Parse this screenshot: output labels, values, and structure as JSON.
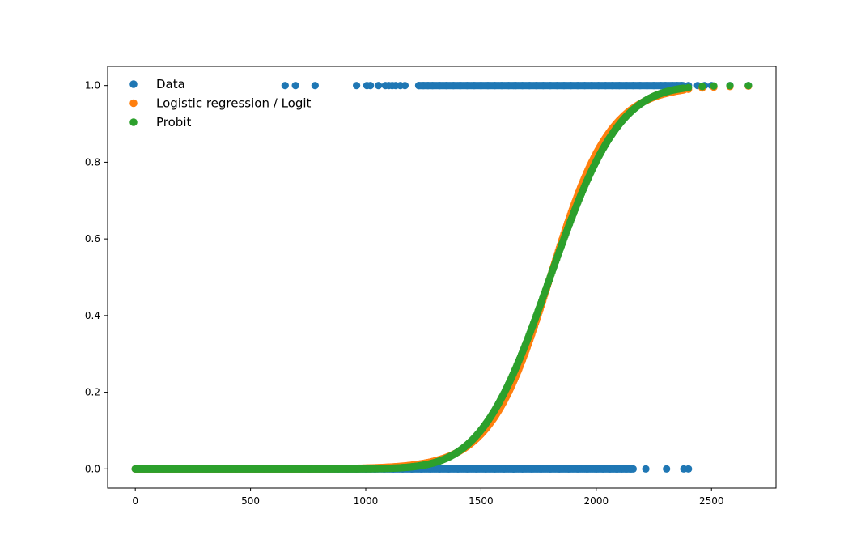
{
  "chart_data": {
    "type": "scatter",
    "title": "",
    "xlabel": "",
    "ylabel": "",
    "xlim": [
      -120,
      2780
    ],
    "ylim": [
      -0.05,
      1.05
    ],
    "x_ticks": [
      0,
      500,
      1000,
      1500,
      2000,
      2500
    ],
    "y_ticks": [
      0.0,
      0.2,
      0.4,
      0.6,
      0.8,
      1.0
    ],
    "x_tick_labels": [
      "0",
      "500",
      "1000",
      "1500",
      "2000",
      "2500"
    ],
    "y_tick_labels": [
      "0.0",
      "0.2",
      "0.4",
      "0.6",
      "0.8",
      "1.0"
    ],
    "grid": false,
    "legend_position": "upper-left",
    "series": [
      {
        "name": "Data",
        "color": "#1f77b4",
        "points_y1": [
          650,
          695,
          780,
          960,
          1005,
          1020,
          1055,
          1085,
          1100,
          1115,
          1130,
          1150,
          1170,
          1230,
          1250,
          1270,
          1290,
          1320,
          1350,
          1380,
          1410,
          1440,
          1470,
          1500,
          1530,
          1560,
          1590,
          1620,
          1650,
          1680,
          1710,
          1740,
          1770,
          1800,
          1830,
          1860,
          1890,
          1920,
          1950,
          1980,
          2010,
          2040,
          2070,
          2100,
          2130,
          2160,
          2190,
          2220,
          2250,
          2280,
          2300,
          2330,
          2350,
          2370,
          2400,
          2440,
          2470,
          2500,
          2580,
          2660
        ],
        "points_y0": [
          0,
          40,
          80,
          120,
          160,
          200,
          240,
          280,
          320,
          360,
          400,
          440,
          480,
          520,
          560,
          600,
          640,
          680,
          720,
          760,
          800,
          840,
          880,
          920,
          960,
          1000,
          1040,
          1080,
          1120,
          1160,
          1200,
          1240,
          1280,
          1320,
          1360,
          1400,
          1440,
          1480,
          1520,
          1560,
          1600,
          1640,
          1680,
          1720,
          1760,
          1800,
          1840,
          1880,
          1920,
          1960,
          2000,
          2030,
          2060,
          2090,
          2110,
          2130,
          2150,
          2215,
          2305,
          2380,
          2400
        ]
      },
      {
        "name": "Logistic regression / Logit",
        "color": "#ff7f0e",
        "model": "logit",
        "x_range": [
          0,
          2660
        ],
        "tail_x": [
          2400,
          2460,
          2510,
          2580,
          2660
        ]
      },
      {
        "name": "Probit",
        "color": "#2ca02c",
        "model": "probit",
        "x_range": [
          0,
          2660
        ],
        "tail_x": [
          2400,
          2460,
          2510,
          2580,
          2660
        ]
      }
    ]
  }
}
